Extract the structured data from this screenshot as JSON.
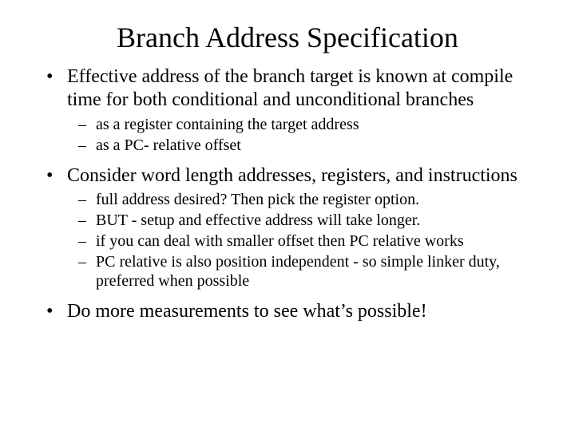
{
  "title": "Branch Address Specification",
  "bullets": {
    "b1": "Effective address of the branch target is known at compile time for both conditional and unconditional branches",
    "b1a": "as a register containing the target address",
    "b1b": "as a PC- relative offset",
    "b2": "Consider word length addresses, registers, and instructions",
    "b2a": "full address desired? Then pick the register option.",
    "b2b": "BUT - setup and effective address will take longer.",
    "b2c": "if you can deal with smaller offset then PC relative works",
    "b2d": "PC relative is also position independent - so simple linker duty, preferred when possible",
    "b3": "Do more measurements to see what’s possible!"
  },
  "colors": {
    "text": "#000000",
    "background": "#ffffff"
  },
  "typography": {
    "title_fontsize": 36,
    "l1_fontsize": 24,
    "l2_fontsize": 20,
    "font_family": "Times New Roman"
  }
}
